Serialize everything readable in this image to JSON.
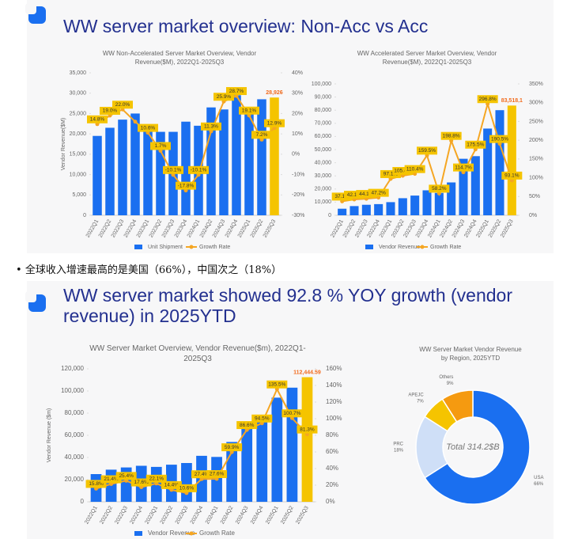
{
  "slides": [
    {
      "title": "WW server market overview: Non-Acc vs Acc"
    },
    {
      "title": "WW server market showed 92.8 % YOY growth (vendor revenue) in 2025YTD"
    }
  ],
  "bullet": "全球收入增速最高的是美国（66%），中国次之（18%）",
  "chart_data": [
    {
      "type": "bar",
      "title": "WW Non-Accelerated Server Market Overview, Vendor Revenue($M), 2022Q1-2025Q3",
      "ylabel": "Vendor Revenue($M)",
      "categories": [
        "2022Q1",
        "2022Q2",
        "2022Q3",
        "2022Q4",
        "2023Q1",
        "2023Q2",
        "2023Q3",
        "2023Q4",
        "2024Q1",
        "2024Q2",
        "2024Q3",
        "2024Q4",
        "2025Q1",
        "2025Q2",
        "2025Q3"
      ],
      "series": [
        {
          "name": "Unit Shipment",
          "color": "#1a6ff0",
          "colors": [
            "#1a6ff0",
            "#1a6ff0",
            "#1a6ff0",
            "#1a6ff0",
            "#1a6ff0",
            "#1a6ff0",
            "#1a6ff0",
            "#1a6ff0",
            "#1a6ff0",
            "#1a6ff0",
            "#1a6ff0",
            "#1a6ff0",
            "#1a6ff0",
            "#1a6ff0",
            "#f5c400"
          ],
          "values": [
            19500,
            21500,
            23500,
            25000,
            21500,
            20500,
            20500,
            23000,
            22000,
            26500,
            26000,
            29500,
            26500,
            28500,
            28926
          ],
          "value_labels": [
            null,
            null,
            null,
            null,
            null,
            null,
            null,
            null,
            null,
            null,
            null,
            null,
            null,
            null,
            "28,926"
          ]
        },
        {
          "name": "Growth Rate",
          "type": "line",
          "axis": "y2",
          "color": "#f5a623",
          "values": [
            14.8,
            19.0,
            22.0,
            16.0,
            10.6,
            1.7,
            -10.1,
            -17.8,
            -10.1,
            11.3,
            25.9,
            28.7,
            19.1,
            7.2,
            12.9
          ],
          "value_labels": [
            "14.8%",
            "19.0%",
            "22.0%",
            null,
            "10.6%",
            "1.7%",
            "-10.1%",
            "-17.8%",
            "-10.1%",
            "11.3%",
            "25.9%",
            "28.7%",
            "19.1%",
            "7.2%",
            "12.9%"
          ]
        }
      ],
      "ylim": [
        0,
        35000
      ],
      "yticks": [
        0,
        {
          "value": 5000,
          "label": "5,000"
        },
        {
          "value": 10000,
          "label": "10,000"
        },
        {
          "value": 15000,
          "label": "15,000"
        },
        {
          "value": 20000,
          "label": "20,000"
        },
        {
          "value": 25000,
          "label": "25,000"
        },
        {
          "value": 30000,
          "label": "30,000"
        },
        {
          "value": 35000,
          "label": "35,000"
        }
      ],
      "y2lim": [
        -30,
        40
      ],
      "y2ticks": [
        {
          "value": -30,
          "label": "-30%"
        },
        {
          "value": -20,
          "label": "-20%"
        },
        {
          "value": -10,
          "label": "-10%"
        },
        {
          "value": 0,
          "label": "0%"
        },
        {
          "value": 10,
          "label": "10%"
        },
        {
          "value": 20,
          "label": "20%"
        },
        {
          "value": 30,
          "label": "30%"
        },
        {
          "value": 40,
          "label": "40%"
        }
      ]
    },
    {
      "type": "bar",
      "title": "WW Accelerated Server Market Overview, Vendor Revenue($M), 2022Q1-2025Q3",
      "categories": [
        "2022Q1",
        "2022Q2",
        "2022Q3",
        "2022Q4",
        "2023Q1",
        "2023Q2",
        "2023Q3",
        "2023Q4",
        "2024Q1",
        "2024Q2",
        "2024Q3",
        "2024Q4",
        "2025Q1",
        "2025Q2",
        "2025Q3"
      ],
      "series": [
        {
          "name": "Vendor Revenue",
          "color": "#1a6ff0",
          "colors": [
            "#1a6ff0",
            "#1a6ff0",
            "#1a6ff0",
            "#1a6ff0",
            "#1a6ff0",
            "#1a6ff0",
            "#1a6ff0",
            "#1a6ff0",
            "#1a6ff0",
            "#1a6ff0",
            "#1a6ff0",
            "#1a6ff0",
            "#1a6ff0",
            "#1a6ff0",
            "#f5c400"
          ],
          "values": [
            5000,
            7000,
            8000,
            8500,
            10000,
            13000,
            15000,
            19000,
            17000,
            25000,
            43000,
            45000,
            66000,
            80000,
            83518.1
          ],
          "value_labels": [
            null,
            null,
            null,
            null,
            null,
            null,
            null,
            null,
            null,
            null,
            null,
            null,
            null,
            null,
            "83,518.1"
          ]
        },
        {
          "name": "Growth Rate",
          "type": "line",
          "axis": "y2",
          "color": "#f5a623",
          "values": [
            37.1,
            42.1,
            44.1,
            47.2,
            97.1,
            105.4,
            110.4,
            159.5,
            58.2,
            198.8,
            114.7,
            175.5,
            296.8,
            190.5,
            93.1
          ],
          "value_labels": [
            "37.1%",
            "42.1%",
            "44.1%",
            "47.2%",
            "97.1%",
            "105.4%",
            "110.4%",
            "159.5%",
            "58.2%",
            "198.8%",
            "114.7%",
            "175.5%",
            "296.8%",
            "190.5%",
            "93.1%"
          ]
        }
      ],
      "ylim": [
        0,
        100000
      ],
      "yticks": [
        0,
        {
          "value": 10000,
          "label": "10,000"
        },
        {
          "value": 20000,
          "label": "20,000"
        },
        {
          "value": 30000,
          "label": "30,000"
        },
        {
          "value": 40000,
          "label": "40,000"
        },
        {
          "value": 50000,
          "label": "50,000"
        },
        {
          "value": 60000,
          "label": "60,000"
        },
        {
          "value": 70000,
          "label": "70,000"
        },
        {
          "value": 80000,
          "label": "80,000"
        },
        {
          "value": 90000,
          "label": "90,000"
        },
        {
          "value": 100000,
          "label": "100,000"
        }
      ],
      "y2lim": [
        0,
        350
      ],
      "y2ticks": [
        {
          "value": 0,
          "label": "0%"
        },
        {
          "value": 50,
          "label": "50%"
        },
        {
          "value": 100,
          "label": "100%"
        },
        {
          "value": 150,
          "label": "150%"
        },
        {
          "value": 200,
          "label": "200%"
        },
        {
          "value": 250,
          "label": "250%"
        },
        {
          "value": 300,
          "label": "300%"
        },
        {
          "value": 350,
          "label": "350%"
        }
      ]
    },
    {
      "type": "bar",
      "title": "WW Server Market Overview, Vendor Revenue($m), 2022Q1-2025Q3",
      "ylabel": "Vendor Revenue ($m)",
      "categories": [
        "2022Q1",
        "2022Q2",
        "2022Q3",
        "2022Q4",
        "2023Q1",
        "2023Q2",
        "2023Q3",
        "2023Q4",
        "2024Q1",
        "2024Q2",
        "2024Q3",
        "2024Q4",
        "2025Q1",
        "2025Q2",
        "2025Q3"
      ],
      "series": [
        {
          "name": "Vendor Revenue",
          "color": "#1a6ff0",
          "colors": [
            "#1a6ff0",
            "#1a6ff0",
            "#1a6ff0",
            "#1a6ff0",
            "#1a6ff0",
            "#1a6ff0",
            "#1a6ff0",
            "#1a6ff0",
            "#1a6ff0",
            "#1a6ff0",
            "#1a6ff0",
            "#1a6ff0",
            "#1a6ff0",
            "#1a6ff0",
            "#f5c400"
          ],
          "values": [
            25000,
            29000,
            31000,
            32500,
            31500,
            33500,
            35000,
            41500,
            40500,
            54000,
            71000,
            75000,
            94000,
            103000,
            112444.59
          ],
          "value_labels": [
            null,
            null,
            null,
            null,
            null,
            null,
            null,
            null,
            null,
            null,
            null,
            null,
            null,
            null,
            "112,444.59"
          ]
        },
        {
          "name": "Growth Rate",
          "type": "line",
          "axis": "y2",
          "color": "#f5a623",
          "values": [
            15.8,
            21.4,
            25.4,
            17.6,
            22.1,
            14.4,
            10.6,
            27.4,
            27.6,
            59.9,
            86.6,
            94.5,
            135.5,
            100.7,
            81.3
          ],
          "value_labels": [
            "15.8%",
            "21.4%",
            "25.4%",
            "17.6%",
            "22.1%",
            "14.4%",
            "10.6%",
            "27.4%",
            "27.6%",
            "59.9%",
            "86.6%",
            "94.5%",
            "135.5%",
            "100.7%",
            "81.3%"
          ]
        }
      ],
      "ylim": [
        0,
        120000
      ],
      "yticks": [
        0,
        {
          "value": 20000,
          "label": "20,000"
        },
        {
          "value": 40000,
          "label": "40,000"
        },
        {
          "value": 60000,
          "label": "60,000"
        },
        {
          "value": 80000,
          "label": "80,000"
        },
        {
          "value": 100000,
          "label": "100,000"
        },
        {
          "value": 120000,
          "label": "120,000"
        }
      ],
      "y2lim": [
        0,
        160
      ],
      "y2ticks": [
        {
          "value": 0,
          "label": "0%"
        },
        {
          "value": 20,
          "label": "20%"
        },
        {
          "value": 40,
          "label": "40%"
        },
        {
          "value": 60,
          "label": "60%"
        },
        {
          "value": 80,
          "label": "80%"
        },
        {
          "value": 100,
          "label": "100%"
        },
        {
          "value": 120,
          "label": "120%"
        },
        {
          "value": 140,
          "label": "140%"
        },
        {
          "value": 160,
          "label": "160%"
        }
      ]
    },
    {
      "type": "pie",
      "title": "WW Server Market Vendor Revenue by Region, 2025YTD",
      "center_text": "Total 314.2$B",
      "categories": [
        "USA",
        "PRC",
        "APEJC",
        "Others"
      ],
      "values": [
        66,
        18,
        7,
        9
      ],
      "value_labels": [
        "66%",
        "18%",
        "7%",
        "9%"
      ],
      "colors": [
        "#1a6ff0",
        "#cfdff7",
        "#f5c400",
        "#f59a10"
      ]
    }
  ]
}
